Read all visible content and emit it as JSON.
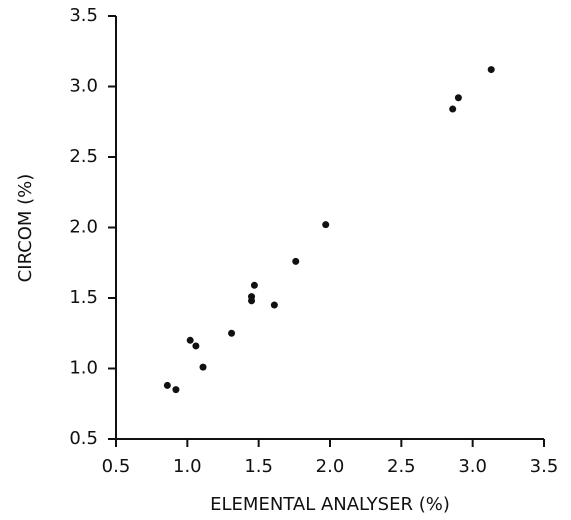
{
  "chart_data": {
    "type": "scatter",
    "xlabel": "ELEMENTAL ANALYSER (%)",
    "ylabel": "CIRCOM (%)",
    "x": [
      0.86,
      0.92,
      1.02,
      1.06,
      1.11,
      1.31,
      1.45,
      1.45,
      1.47,
      1.61,
      1.76,
      1.97,
      2.86,
      2.9,
      3.13
    ],
    "values": [
      0.88,
      0.85,
      1.2,
      1.16,
      1.01,
      1.25,
      1.51,
      1.48,
      1.59,
      1.45,
      1.76,
      2.02,
      2.84,
      2.92,
      3.12
    ],
    "color": "#111111",
    "xlim": [
      0.5,
      3.5
    ],
    "ylim": [
      0.5,
      3.5
    ],
    "xticks": [
      0.5,
      {
        "value": 1,
        "label": "1.0"
      },
      1.5,
      {
        "value": 2,
        "label": "2.0"
      },
      2.5,
      {
        "value": 3,
        "label": "3.0"
      },
      3.5
    ],
    "yticks": [
      0.5,
      {
        "value": 1,
        "label": "1.0"
      },
      1.5,
      {
        "value": 2,
        "label": "2.0"
      },
      2.5,
      {
        "value": 3,
        "label": "3.0"
      },
      3.5
    ],
    "grid": false
  }
}
